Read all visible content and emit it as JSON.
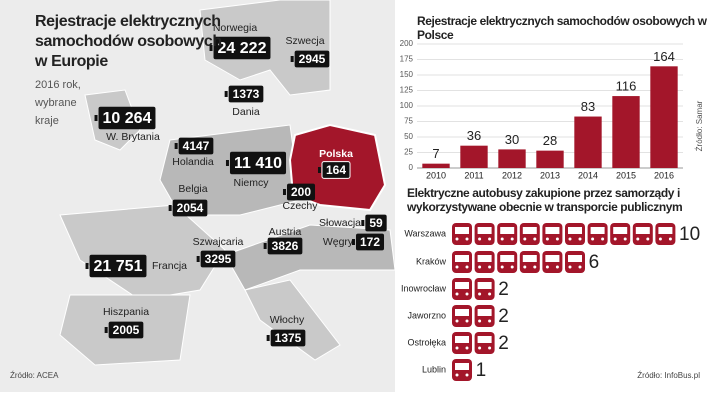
{
  "chart_data": [
    {
      "type": "map",
      "title": "Rejestracje elektrycznych samochodów osobowych w Europie",
      "subtitle": "2016 rok, wybrane kraje",
      "source": "Źródło: ACEA",
      "categories": [
        "Norwegia",
        "Szwecja",
        "Dania",
        "W. Brytania",
        "Holandia",
        "Niemcy",
        "Polska",
        "Belgia",
        "Czechy",
        "Słowacja",
        "Francja",
        "Szwajcaria",
        "Austria",
        "Węgry",
        "Hiszpania",
        "Włochy"
      ],
      "values": [
        24222,
        2945,
        1373,
        10264,
        4147,
        11410,
        164,
        2054,
        200,
        59,
        21751,
        3295,
        3826,
        172,
        2005,
        1375
      ],
      "value_labels": [
        "24 222",
        "2945",
        "1373",
        "10 264",
        "4147",
        "11 410",
        "164",
        "2054",
        "200",
        "59",
        "21 751",
        "3295",
        "3826",
        "172",
        "2005",
        "1375"
      ],
      "highlight_color": "#a3162a"
    },
    {
      "type": "bar",
      "title": "Rejestracje elektrycznych samochodów osobowych w Polsce",
      "source": "Źródło: Samar",
      "categories": [
        "2010",
        "2011",
        "2012",
        "2013",
        "2014",
        "2015",
        "2016"
      ],
      "values": [
        7,
        36,
        30,
        28,
        83,
        116,
        164
      ],
      "color": "#a3162a",
      "ylim": [
        0,
        200
      ],
      "yticks": [
        0,
        25,
        50,
        75,
        100,
        125,
        150,
        175,
        200
      ],
      "grid": true
    },
    {
      "type": "pictogram",
      "title": "Elektryczne autobusy zakupione przez samorządy i wykorzystywane obecnie w transporcie publicznym",
      "source": "Źródło: InfoBus.pl",
      "categories": [
        "Warszawa",
        "Kraków",
        "Inowrocław",
        "Jaworzno",
        "Ostrołęka",
        "Lublin"
      ],
      "values": [
        10,
        6,
        2,
        2,
        2,
        1
      ],
      "color": "#a3162a"
    }
  ]
}
